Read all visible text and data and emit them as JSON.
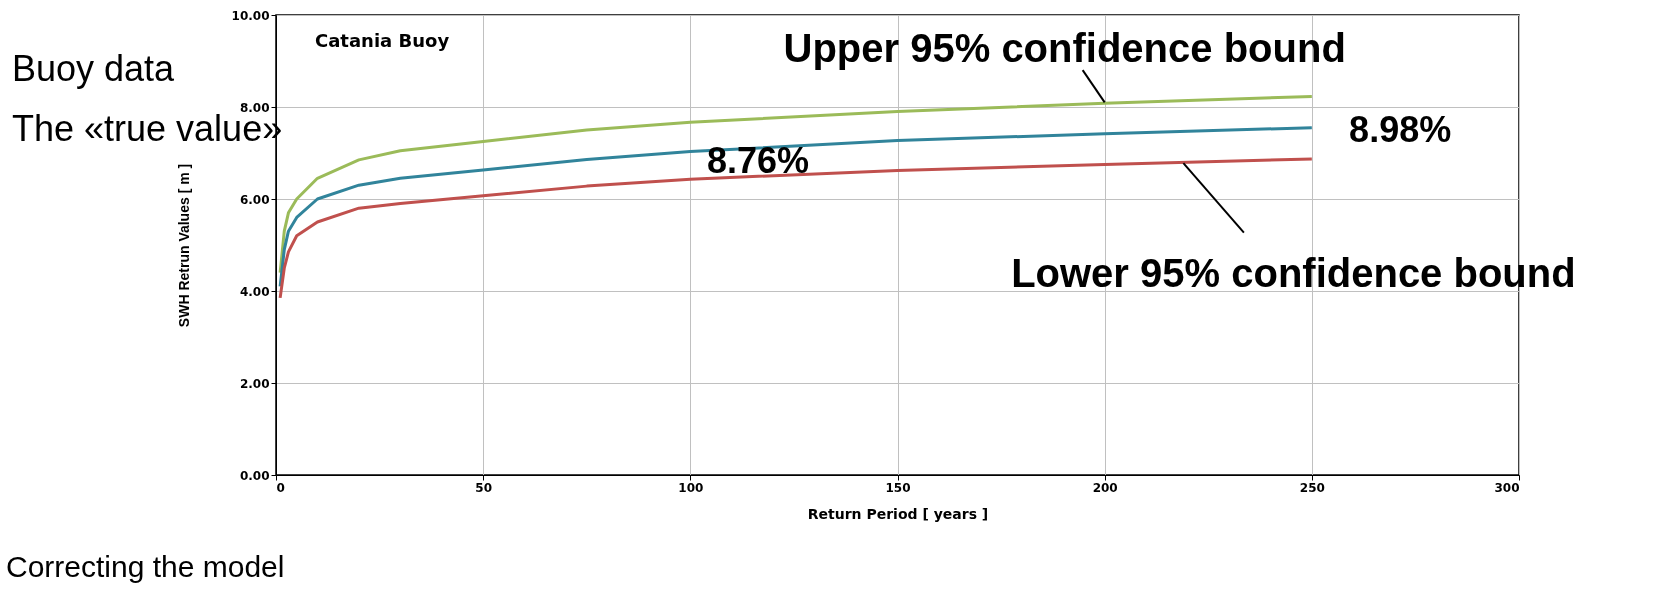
{
  "chart_data": {
    "type": "line",
    "xlabel": "Return Period [ years ]",
    "ylabel": "SWH Retrun Values [ m ]",
    "xlim": [
      0,
      300
    ],
    "xticks": [
      0,
      50,
      100,
      150,
      200,
      250,
      300
    ],
    "ylim": [
      0,
      10
    ],
    "yticks": [
      {
        "value": 0,
        "label": "0.00"
      },
      {
        "value": 2,
        "label": "2.00"
      },
      {
        "value": 4,
        "label": "4.00"
      },
      {
        "value": 6,
        "label": "6.00"
      },
      {
        "value": 8,
        "label": "8.00"
      },
      {
        "value": 10,
        "label": "10.00"
      }
    ],
    "grid": true,
    "x": [
      1,
      2,
      3,
      5,
      10,
      20,
      30,
      50,
      75,
      100,
      150,
      200,
      250
    ],
    "series": [
      {
        "color": "#9bbb59",
        "values": [
          4.4,
          5.3,
          5.7,
          6.0,
          6.45,
          6.85,
          7.05,
          7.25,
          7.5,
          7.67,
          7.9,
          8.08,
          8.23
        ]
      },
      {
        "color": "#31849b",
        "values": [
          4.1,
          4.9,
          5.3,
          5.6,
          6.0,
          6.3,
          6.45,
          6.63,
          6.86,
          7.03,
          7.27,
          7.42,
          7.55
        ]
      },
      {
        "color": "#c0504d",
        "values": [
          3.85,
          4.5,
          4.85,
          5.2,
          5.5,
          5.8,
          5.9,
          6.07,
          6.28,
          6.43,
          6.62,
          6.75,
          6.87
        ]
      }
    ],
    "annotations": [
      "8.76%",
      "8.98%",
      {
        "text": "Upper 95% confidence bound",
        "x": 200,
        "y": 8.1
      },
      {
        "text": "Lower 95% confidence bound",
        "x": 219,
        "y": 6.78
      },
      "Catania Buoy",
      "Buoy data",
      "The «true value»",
      "Correcting the model"
    ]
  }
}
